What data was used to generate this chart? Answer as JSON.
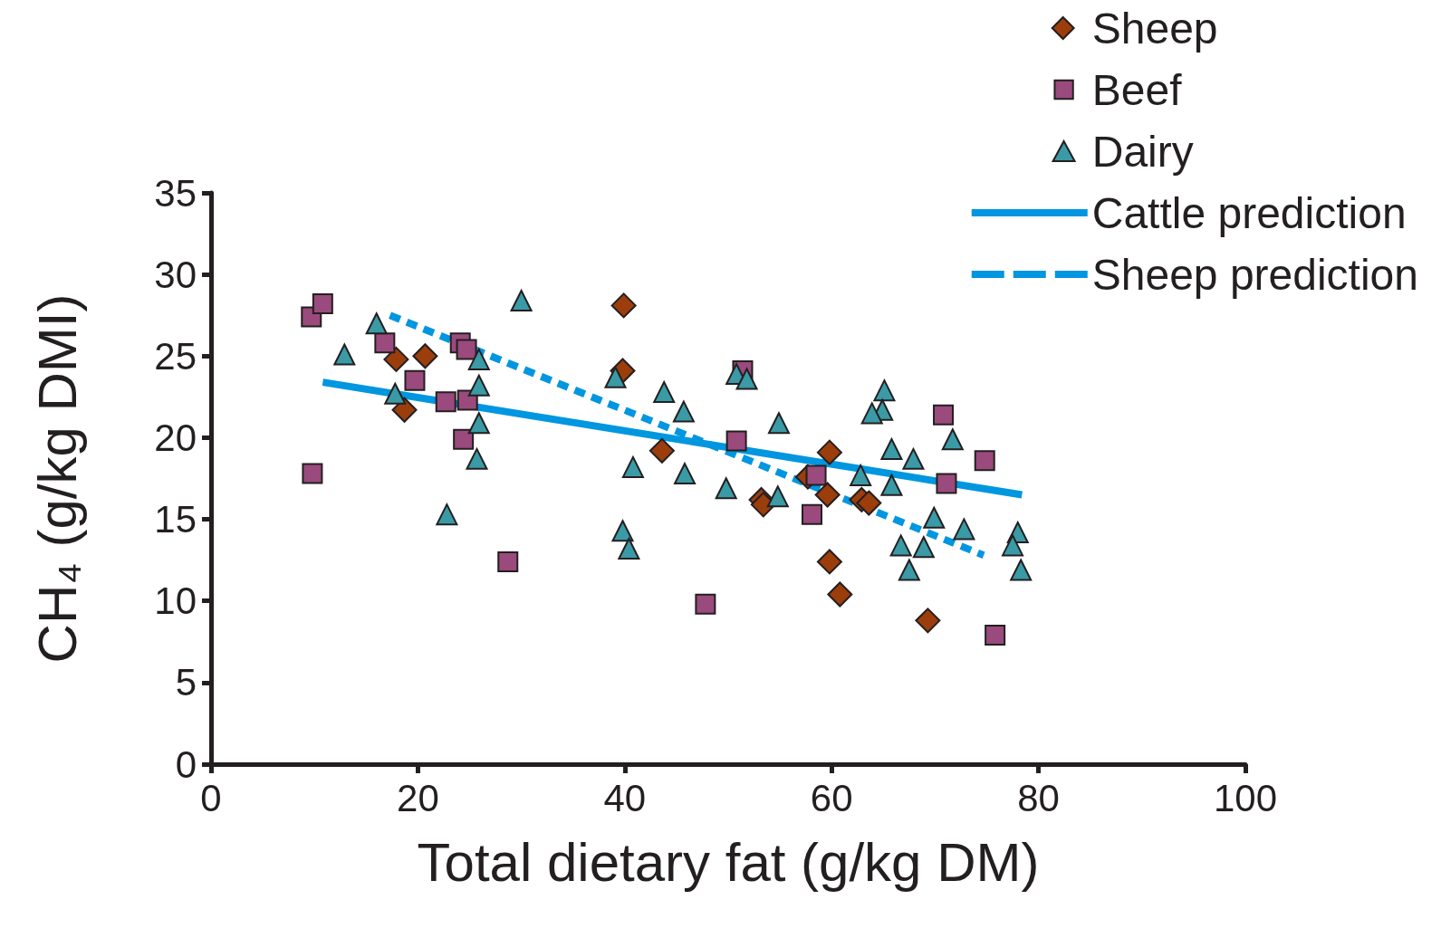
{
  "chart_data": {
    "type": "scatter",
    "xlabel": "Total dietary fat (g/kg DM)",
    "ylabel": "CH₄ (g/kg DMI)",
    "xlim": [
      0,
      100
    ],
    "xticks": [
      0,
      20,
      40,
      60,
      80,
      100
    ],
    "ylim": [
      0,
      35
    ],
    "yticks": [
      0,
      5,
      10,
      15,
      20,
      25,
      30,
      35
    ],
    "grid": false,
    "legend": "top right",
    "series": [
      {
        "name": "Sheep",
        "marker": "diamond",
        "color": "#9c3d0c",
        "x": [
          17.9,
          18.7,
          20.7,
          39.9,
          39.8,
          43.6,
          53.2,
          53.4,
          57.7,
          59.8,
          59.6,
          59.8,
          60.8,
          62.9,
          63.6,
          69.3
        ],
        "values": [
          24.8,
          21.7,
          25.0,
          28.1,
          24.1,
          19.2,
          16.2,
          15.9,
          17.6,
          19.1,
          16.5,
          12.4,
          10.4,
          16.2,
          16.0,
          8.8
        ]
      },
      {
        "name": "Beef",
        "marker": "square",
        "color": "#9a4a7c",
        "x": [
          9.7,
          10.8,
          9.8,
          16.8,
          19.7,
          22.7,
          24.1,
          24.7,
          24.8,
          24.4,
          28.7,
          47.8,
          51.4,
          50.8,
          58.5,
          58.1,
          70.8,
          71.1,
          74.8,
          75.8
        ],
        "values": [
          27.4,
          28.2,
          17.8,
          25.8,
          23.5,
          22.2,
          25.8,
          25.4,
          22.3,
          19.9,
          12.4,
          9.8,
          24.1,
          19.8,
          17.7,
          15.3,
          21.4,
          17.2,
          18.6,
          7.9
        ]
      },
      {
        "name": "Dairy",
        "marker": "triangle",
        "color": "#3a9aa6",
        "x": [
          16.0,
          12.9,
          17.8,
          30.0,
          25.9,
          25.9,
          25.9,
          25.7,
          22.8,
          39.1,
          39.8,
          40.4,
          40.8,
          43.8,
          45.7,
          45.8,
          50.8,
          51.8,
          54.9,
          49.8,
          54.8,
          62.8,
          65.1,
          64.9,
          63.9,
          65.8,
          65.8,
          67.9,
          71.7,
          69.9,
          66.7,
          68.9,
          67.5,
          72.8,
          78.0,
          77.5,
          78.3
        ],
        "values": [
          27.0,
          25.1,
          22.7,
          28.4,
          24.8,
          23.2,
          20.9,
          18.7,
          15.3,
          23.7,
          14.3,
          13.2,
          18.2,
          22.8,
          21.6,
          17.8,
          23.9,
          23.6,
          20.9,
          16.9,
          16.4,
          17.7,
          22.9,
          21.7,
          21.5,
          19.3,
          17.1,
          18.7,
          19.9,
          15.1,
          13.4,
          13.3,
          11.9,
          14.4,
          14.2,
          13.4,
          11.9
        ]
      },
      {
        "name": "Cattle prediction",
        "type": "line",
        "line_style": "solid",
        "color": "#0096e0",
        "x": [
          10.8,
          78.4
        ],
        "values": [
          23.4,
          16.5
        ]
      },
      {
        "name": "Sheep prediction",
        "type": "line",
        "line_style": "dashed",
        "color": "#0096e0",
        "x": [
          17.3,
          74.7
        ],
        "values": [
          27.5,
          12.8
        ]
      }
    ]
  }
}
